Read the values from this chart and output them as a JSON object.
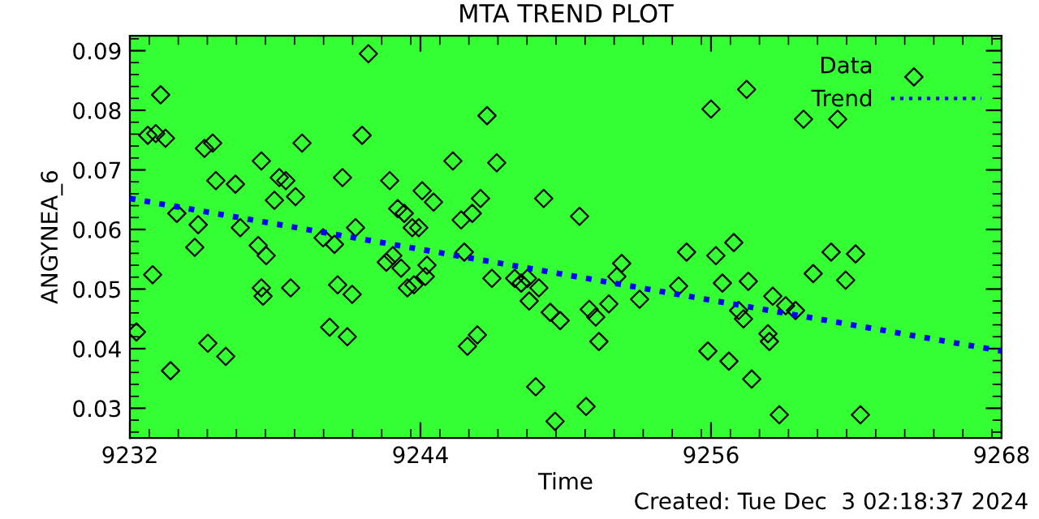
{
  "chart_data": {
    "type": "scatter",
    "title": "MTA TREND PLOT",
    "xlabel": "Time",
    "ylabel": "ANGYNEA_6",
    "annotations": [
      "Created: Tue Dec  3 02:18:37 2024"
    ],
    "xlim": [
      9232,
      9268
    ],
    "xticks": [
      9232,
      9244,
      9256,
      9268
    ],
    "ylim": [
      0.025,
      0.0925
    ],
    "yticks": [
      0.03,
      0.04,
      0.05,
      0.06,
      0.07,
      0.08,
      0.09
    ],
    "grid": false,
    "legend": "top right",
    "series": [
      {
        "name": "Data",
        "marker": "diamond",
        "color": "#000000",
        "x": [
          9232.27,
          9232.74,
          9233.07,
          9233.27,
          9233.47,
          9233.68,
          9233.94,
          9232.94,
          9234.68,
          9234.82,
          9235.08,
          9235.42,
          9235.22,
          9235.55,
          9235.96,
          9236.36,
          9236.56,
          9237.3,
          9237.43,
          9237.63,
          9237.43,
          9237.5,
          9237.97,
          9238.17,
          9238.44,
          9238.64,
          9238.84,
          9239.11,
          9239.98,
          9240.25,
          9240.45,
          9240.58,
          9240.78,
          9240.98,
          9241.18,
          9241.32,
          9241.59,
          9241.85,
          9242.59,
          9242.73,
          9242.86,
          9243.06,
          9243.2,
          9243.33,
          9243.46,
          9243.66,
          9243.73,
          9243.93,
          9244.07,
          9244.2,
          9244.27,
          9244.54,
          9245.34,
          9245.68,
          9245.81,
          9245.94,
          9246.14,
          9246.35,
          9246.48,
          9246.75,
          9246.95,
          9247.15,
          9247.89,
          9248.16,
          9248.42,
          9248.49,
          9248.76,
          9248.89,
          9249.09,
          9249.36,
          9249.56,
          9249.77,
          9250.57,
          9250.84,
          9250.97,
          9251.24,
          9251.37,
          9251.78,
          9252.11,
          9252.31,
          9253.05,
          9254.66,
          9254.99,
          9256.0,
          9256.2,
          9255.87,
          9256.47,
          9256.74,
          9256.94,
          9257.14,
          9257.34,
          9257.47,
          9257.54,
          9257.68,
          9258.35,
          9258.41,
          9258.55,
          9258.82,
          9259.08,
          9259.49,
          9259.82,
          9260.22,
          9260.96,
          9261.23,
          9261.56,
          9261.97,
          9262.17,
          9264.38
        ],
        "values": [
          0.0428,
          0.0758,
          0.0761,
          0.0826,
          0.0753,
          0.0363,
          0.0627,
          0.0524,
          0.057,
          0.0608,
          0.0736,
          0.0745,
          0.0409,
          0.0682,
          0.0387,
          0.0676,
          0.0603,
          0.0573,
          0.0715,
          0.0556,
          0.0502,
          0.0488,
          0.0649,
          0.0687,
          0.0682,
          0.0502,
          0.0655,
          0.0745,
          0.0586,
          0.0436,
          0.0575,
          0.0507,
          0.0687,
          0.042,
          0.0491,
          0.0603,
          0.0758,
          0.0895,
          0.0545,
          0.0682,
          0.0556,
          0.0635,
          0.0535,
          0.0627,
          0.0502,
          0.0603,
          0.0507,
          0.0603,
          0.0665,
          0.0521,
          0.054,
          0.0646,
          0.0715,
          0.0616,
          0.0562,
          0.0404,
          0.0627,
          0.0423,
          0.0652,
          0.0791,
          0.0518,
          0.0712,
          0.0518,
          0.051,
          0.0518,
          0.048,
          0.0336,
          0.0502,
          0.0652,
          0.0461,
          0.0278,
          0.0447,
          0.0622,
          0.0303,
          0.0466,
          0.0453,
          0.0412,
          0.0475,
          0.0521,
          0.0543,
          0.0483,
          0.0505,
          0.0562,
          0.0802,
          0.0556,
          0.0396,
          0.051,
          0.0379,
          0.0578,
          0.0464,
          0.045,
          0.0835,
          0.0513,
          0.0349,
          0.0425,
          0.0412,
          0.0488,
          0.0289,
          0.0472,
          0.0464,
          0.0785,
          0.0526,
          0.0562,
          0.0785,
          0.0515,
          0.0559,
          0.0289,
          0.0856
        ]
      },
      {
        "name": "Trend",
        "type": "line",
        "line_style": "dotted",
        "color": "#0000ff",
        "x": [
          9232,
          9268
        ],
        "values": [
          0.0652,
          0.0396
        ]
      }
    ]
  }
}
